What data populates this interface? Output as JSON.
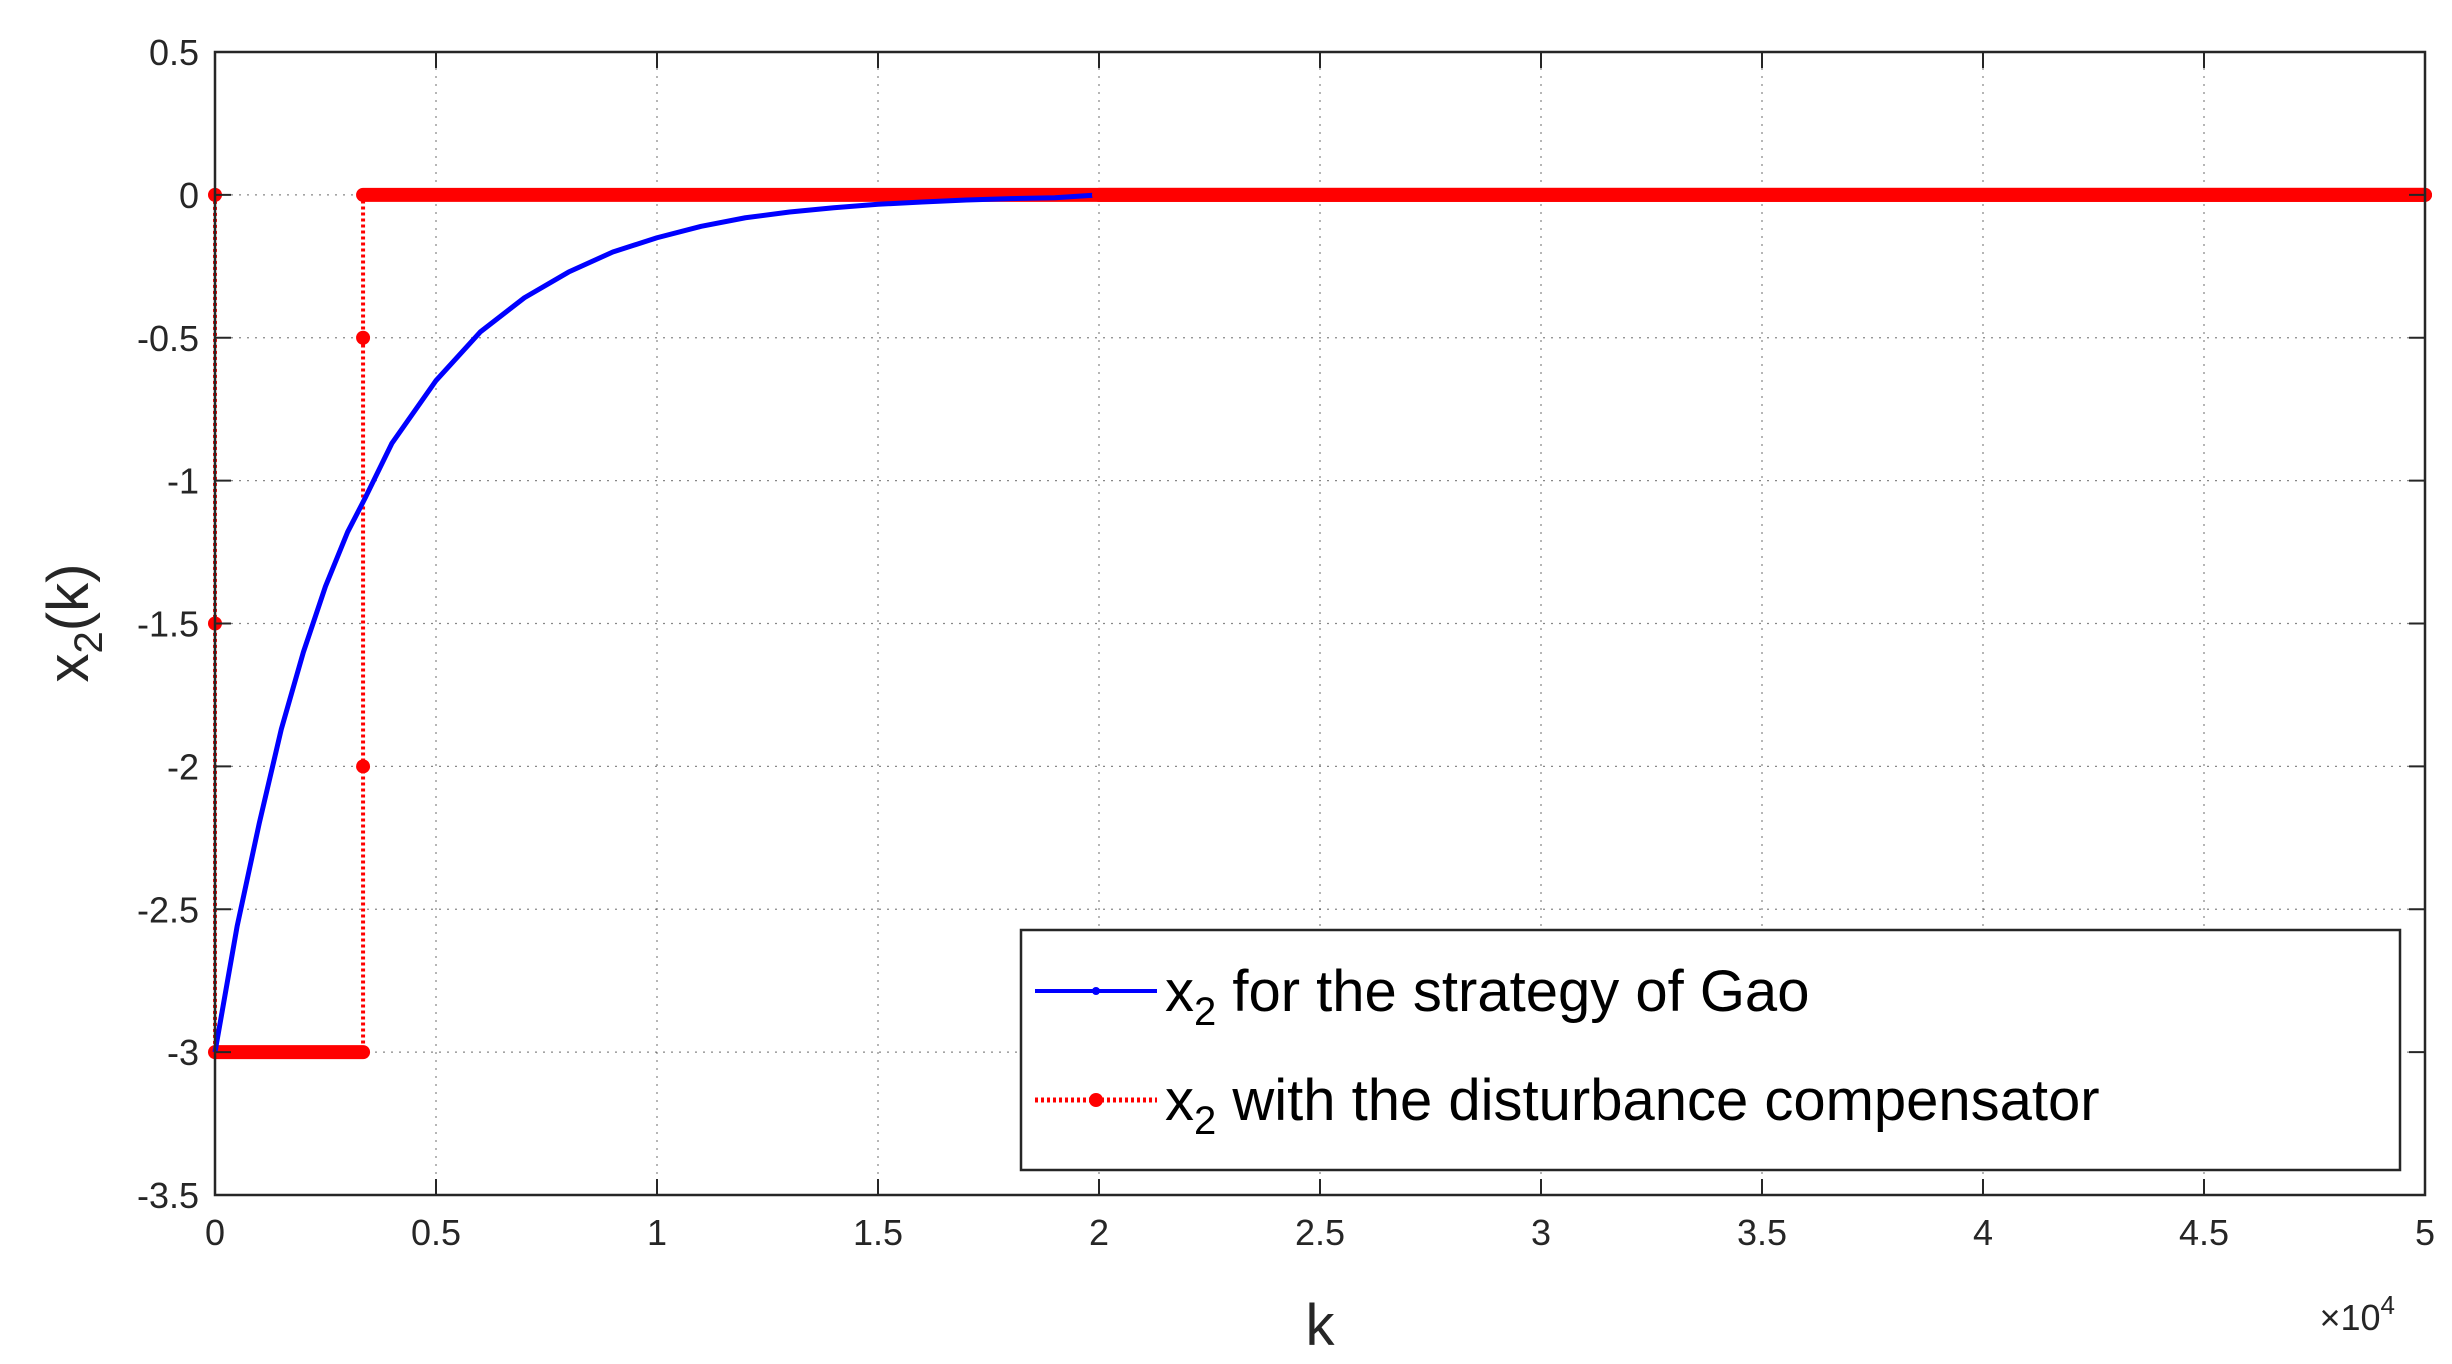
{
  "chart_data": {
    "type": "line",
    "title": "",
    "xlabel": "k",
    "ylabel_main": "x",
    "ylabel_sub": "2",
    "ylabel_tail": "(k)",
    "xlim": [
      0,
      50000
    ],
    "ylim": [
      -3.5,
      0.5
    ],
    "x_exponent_label_prefix": "×10",
    "x_exponent_label_power": "4",
    "x_ticks": [
      0,
      5000,
      10000,
      15000,
      20000,
      25000,
      30000,
      35000,
      40000,
      45000,
      50000
    ],
    "x_tick_labels": [
      "0",
      "0.5",
      "1",
      "1.5",
      "2",
      "2.5",
      "3",
      "3.5",
      "4",
      "4.5",
      "5"
    ],
    "y_ticks": [
      0.5,
      0,
      -0.5,
      -1,
      -1.5,
      -2,
      -2.5,
      -3,
      -3.5
    ],
    "y_tick_labels": [
      "0.5",
      "0",
      "-0.5",
      "-1",
      "-1.5",
      "-2",
      "-2.5",
      "-3",
      "-3.5"
    ],
    "grid": true,
    "legend_position": "bottom-right",
    "series": [
      {
        "name_main": "x",
        "name_sub": "2",
        "name_tail": " for the strategy of Gao",
        "color": "#0000ff",
        "style": "solid",
        "marker": "dot",
        "x": [
          0,
          500,
          1000,
          1500,
          2000,
          2500,
          3000,
          3400,
          4000,
          5000,
          6000,
          7000,
          8000,
          9000,
          10000,
          11000,
          12000,
          13000,
          14000,
          15000,
          16000,
          17000,
          18000,
          19000,
          20000,
          25000,
          30000,
          35000,
          40000,
          45000,
          50000
        ],
        "y": [
          -3.0,
          -2.56,
          -2.2,
          -1.87,
          -1.6,
          -1.37,
          -1.18,
          -1.06,
          -0.87,
          -0.65,
          -0.48,
          -0.36,
          -0.27,
          -0.2,
          -0.15,
          -0.11,
          -0.08,
          -0.06,
          -0.045,
          -0.033,
          -0.025,
          -0.018,
          -0.013,
          -0.01,
          0.0,
          0.0,
          0.0,
          0.0,
          0.0,
          0.0,
          0.0
        ]
      },
      {
        "name_main": "x",
        "name_sub": "2",
        "name_tail": " with the disturbance compensator",
        "color": "#ff0000",
        "style": "dotted",
        "marker": "dot",
        "x": [
          0,
          0,
          0,
          0,
          3350,
          3350,
          3350,
          3350,
          50000
        ],
        "y": [
          0,
          -1.5,
          -3.0,
          -3.0,
          -3.0,
          -2.0,
          -0.5,
          0,
          0
        ],
        "marker_points": [
          {
            "x": 0,
            "y": 0
          },
          {
            "x": 0,
            "y": -1.5
          },
          {
            "x": 3350,
            "y": -0.5
          },
          {
            "x": 3350,
            "y": -2.0
          }
        ],
        "thick_segments": [
          {
            "x": [
              0,
              3350
            ],
            "y": [
              -3.0,
              -3.0
            ]
          },
          {
            "x": [
              3350,
              50000
            ],
            "y": [
              0,
              0
            ]
          }
        ]
      }
    ]
  }
}
